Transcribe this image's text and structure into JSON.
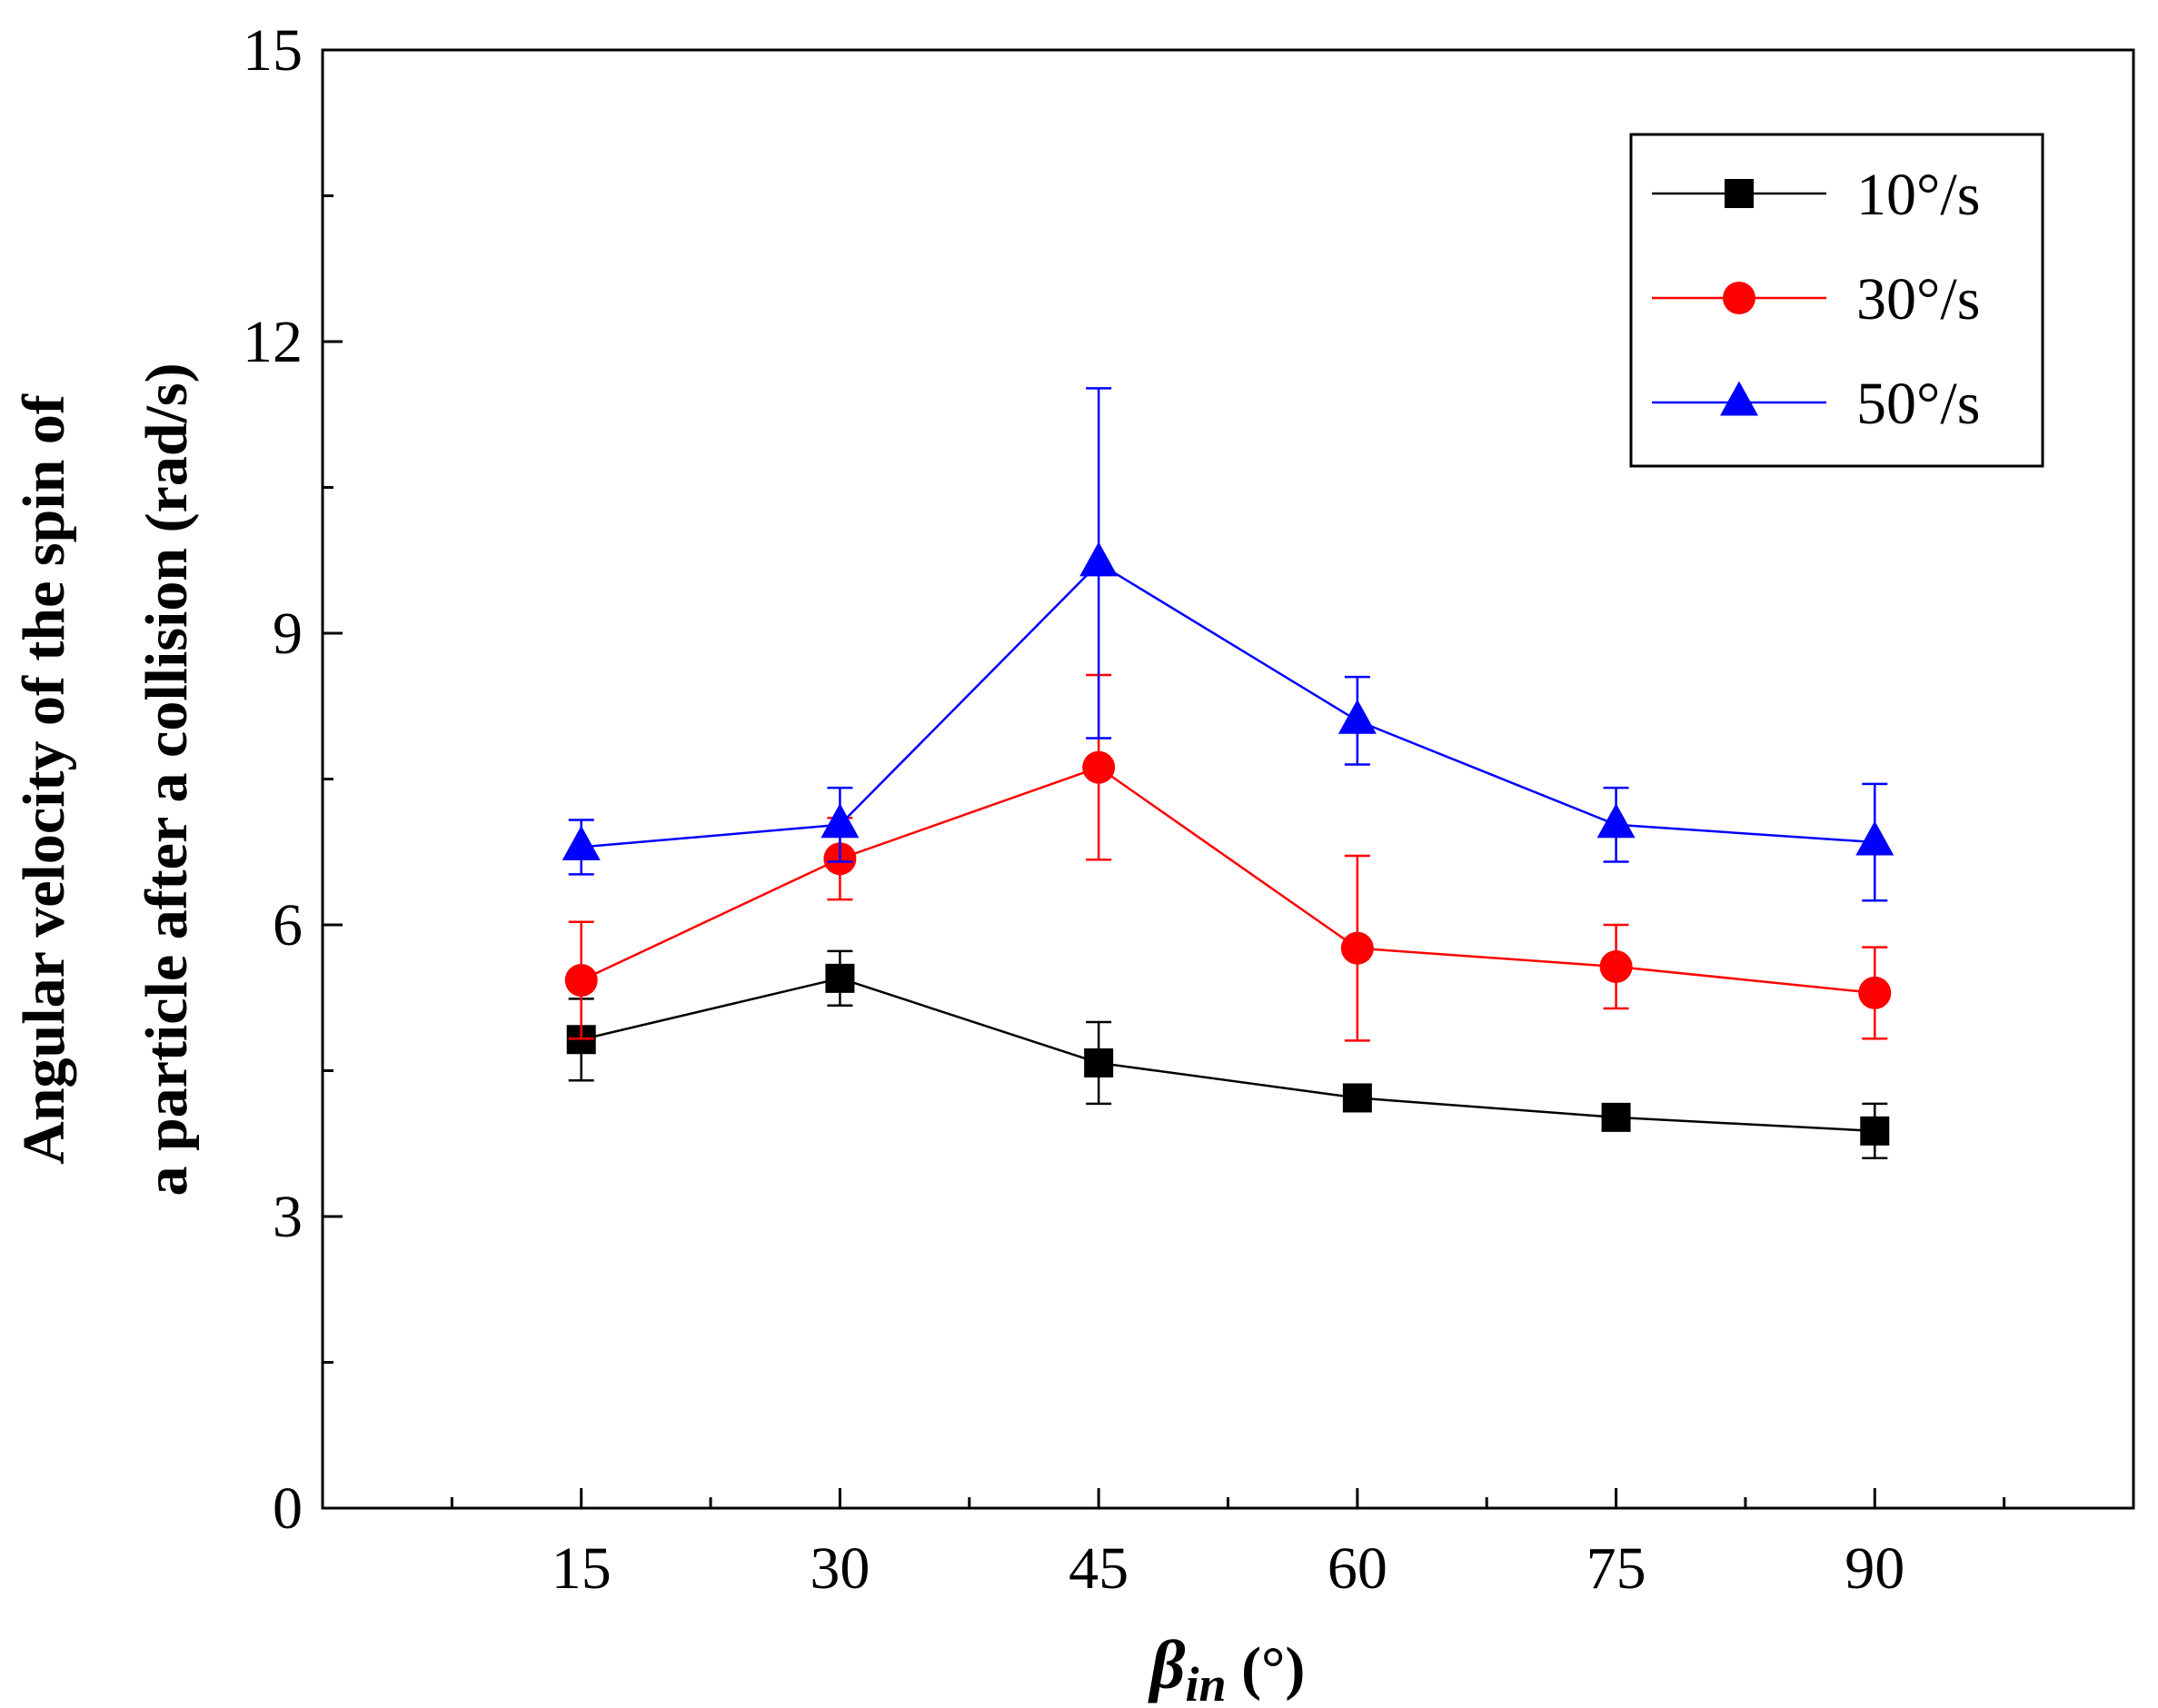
{
  "chart_data": {
    "type": "line",
    "x": [
      15,
      30,
      45,
      60,
      75,
      90
    ],
    "xlabel_symbol": "β",
    "xlabel_subscript": "in",
    "xlabel_unit": " (°)",
    "ylabel_line1": "Angular velocity of the spin of",
    "ylabel_line2": "a particle after a collision (rad/s)",
    "xlim": [
      0,
      105
    ],
    "ylim": [
      0,
      15
    ],
    "x_ticks": [
      15,
      30,
      45,
      60,
      75,
      90
    ],
    "x_tick_labels": [
      "15",
      "30",
      "45",
      "60",
      "75",
      "90"
    ],
    "y_ticks": [
      0,
      3,
      6,
      9,
      12,
      15
    ],
    "y_tick_labels": [
      "0",
      "3",
      "6",
      "9",
      "12",
      "15"
    ],
    "grid": false,
    "legend_position": "top-right",
    "series": [
      {
        "name": "10°/s",
        "color": "#000000",
        "marker": "square",
        "values": [
          4.82,
          5.45,
          4.58,
          4.22,
          4.02,
          3.88
        ],
        "errors": [
          0.42,
          0.28,
          0.42,
          0.08,
          0.12,
          0.28
        ]
      },
      {
        "name": "30°/s",
        "color": "#ff0000",
        "marker": "circle",
        "values": [
          5.43,
          6.68,
          7.62,
          5.76,
          5.57,
          5.3
        ],
        "errors": [
          0.6,
          0.42,
          0.95,
          0.95,
          0.43,
          0.47
        ]
      },
      {
        "name": "50°/s",
        "color": "#0000ff",
        "marker": "triangle",
        "values": [
          6.8,
          7.03,
          9.72,
          8.1,
          7.03,
          6.85
        ],
        "errors": [
          0.28,
          0.38,
          1.8,
          0.45,
          0.38,
          0.6
        ]
      }
    ]
  }
}
